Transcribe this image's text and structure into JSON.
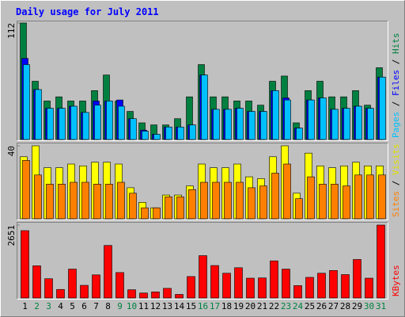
{
  "chart_data": [
    {
      "type": "bar",
      "title": "Daily usage for July 2011",
      "categories": [
        "1",
        "2",
        "3",
        "4",
        "5",
        "6",
        "7",
        "8",
        "9",
        "10",
        "11",
        "12",
        "13",
        "14",
        "15",
        "16",
        "17",
        "18",
        "19",
        "20",
        "21",
        "22",
        "23",
        "24",
        "25",
        "26",
        "27",
        "28",
        "29",
        "30",
        "31"
      ],
      "category_colors": [
        "#000000",
        "#008040",
        "#008040",
        "#000000",
        "#000000",
        "#000000",
        "#000000",
        "#000000",
        "#008040",
        "#008040",
        "#000000",
        "#000000",
        "#000000",
        "#000000",
        "#000000",
        "#008040",
        "#008040",
        "#000000",
        "#000000",
        "#000000",
        "#000000",
        "#000000",
        "#008040",
        "#008040",
        "#000000",
        "#000000",
        "#000000",
        "#000000",
        "#000000",
        "#008040",
        "#008040"
      ],
      "ylim": [
        0,
        112
      ],
      "yticks": [
        112
      ],
      "legend_separator": " / ",
      "series": [
        {
          "name": "Hits",
          "color": "#008040",
          "values": [
            112,
            56,
            37,
            41,
            37,
            37,
            47,
            62,
            37,
            27,
            16,
            14,
            14,
            20,
            41,
            72,
            41,
            41,
            37,
            37,
            33,
            56,
            61,
            16,
            47,
            56,
            41,
            41,
            47,
            33,
            69
          ]
        },
        {
          "name": "Files",
          "color": "#0000ff",
          "values": [
            78,
            48,
            30,
            30,
            32,
            26,
            37,
            37,
            38,
            20,
            9,
            5,
            12,
            12,
            14,
            62,
            29,
            29,
            30,
            27,
            27,
            47,
            40,
            11,
            38,
            40,
            29,
            30,
            32,
            30,
            60
          ]
        },
        {
          "name": "Pages",
          "color": "#00c0ff",
          "values": [
            72,
            48,
            30,
            30,
            32,
            26,
            33,
            37,
            32,
            20,
            8,
            5,
            12,
            12,
            14,
            62,
            29,
            29,
            30,
            27,
            27,
            47,
            38,
            11,
            38,
            40,
            29,
            30,
            32,
            30,
            60
          ]
        }
      ]
    },
    {
      "type": "bar",
      "ylim": [
        0,
        40
      ],
      "yticks": [
        40
      ],
      "legend_separator": " / ",
      "series": [
        {
          "name": "Visits",
          "color": "#ffff00",
          "values": [
            34,
            40,
            28,
            28,
            30,
            29,
            31,
            31,
            30,
            17,
            9,
            6,
            13,
            13,
            18,
            30,
            28,
            28,
            30,
            23,
            22,
            34,
            40,
            14,
            36,
            29,
            28,
            29,
            31,
            29,
            29
          ]
        },
        {
          "name": "Sites",
          "color": "#ff8000",
          "values": [
            32,
            24,
            19,
            19,
            20,
            20,
            19,
            19,
            20,
            14,
            6,
            6,
            12,
            12,
            16,
            20,
            20,
            20,
            20,
            17,
            18,
            25,
            30,
            11,
            23,
            19,
            19,
            18,
            24,
            24,
            24
          ]
        }
      ]
    },
    {
      "type": "bar",
      "ylim": [
        0,
        2651
      ],
      "yticks": [
        2651
      ],
      "series": [
        {
          "name": "KBytes",
          "color": "#ff0000",
          "values": [
            2449,
            1170,
            700,
            310,
            1050,
            460,
            840,
            1910,
            925,
            300,
            180,
            220,
            350,
            130,
            780,
            1540,
            1180,
            900,
            1100,
            720,
            730,
            1350,
            1050,
            450,
            750,
            900,
            1000,
            850,
            1400,
            720,
            2651
          ]
        }
      ]
    }
  ]
}
